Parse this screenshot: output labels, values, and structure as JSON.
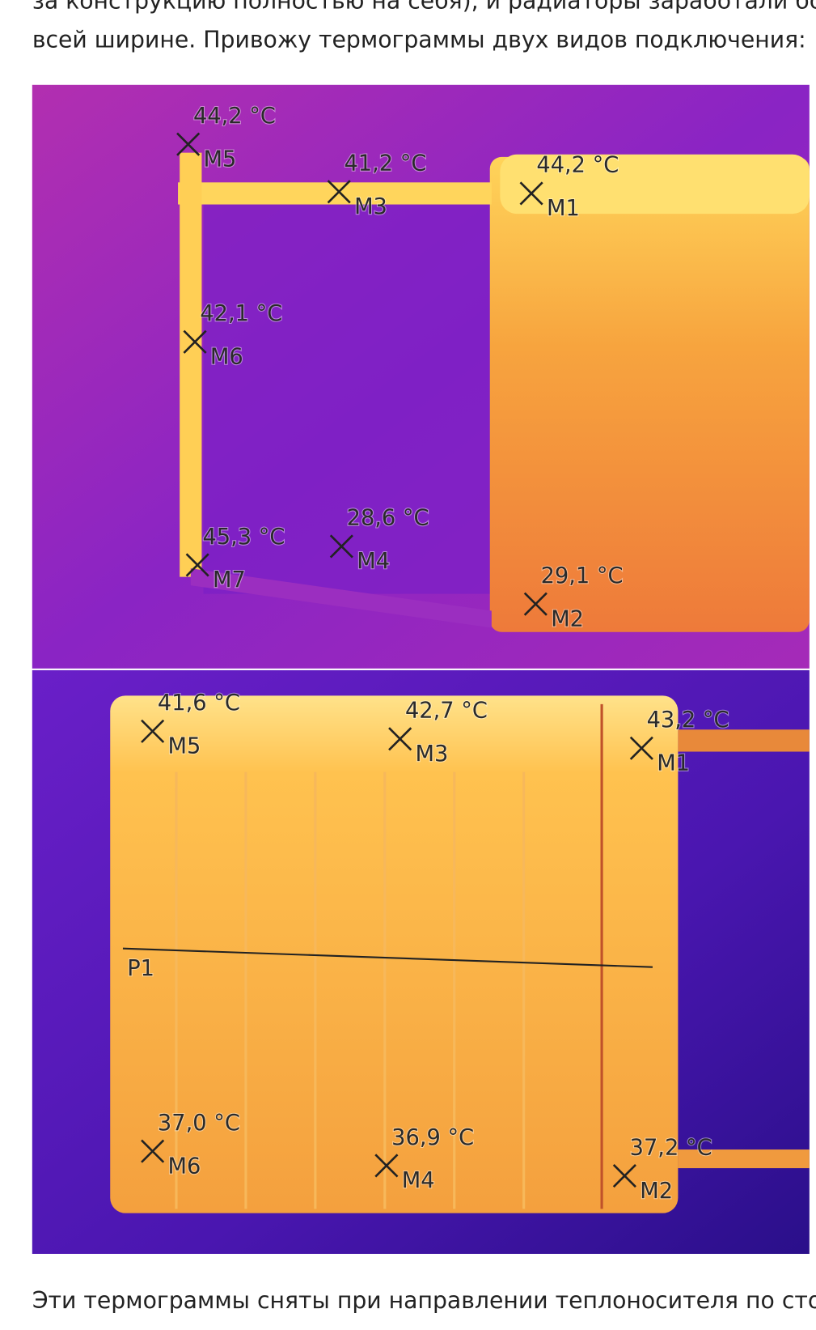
{
  "text_top": [
    "за конструкцию полностью на себя), и радиаторы заработали бо",
    "всей ширине. Привожу термограммы двух видов подключения:"
  ],
  "thermograms": [
    {
      "points": [
        {
          "temp": "44,2 °C",
          "label": "M5"
        },
        {
          "temp": "41,2 °C",
          "label": "M3"
        },
        {
          "temp": "44,2 °C",
          "label": "M1"
        },
        {
          "temp": "42,1 °C",
          "label": "M6"
        },
        {
          "temp": "45,3 °C",
          "label": "M7"
        },
        {
          "temp": "28,6 °C",
          "label": "M4"
        },
        {
          "temp": "29,1 °C",
          "label": "M2"
        }
      ]
    },
    {
      "points": [
        {
          "temp": "41,6 °C",
          "label": "M5"
        },
        {
          "temp": "42,7 °C",
          "label": "M3"
        },
        {
          "temp": "43,2 °C",
          "label": "M1"
        },
        {
          "temp": "37,0 °C",
          "label": "M6"
        },
        {
          "temp": "36,9 °C",
          "label": "M4"
        },
        {
          "temp": "37,2 °C",
          "label": "M2"
        }
      ],
      "line_label": "P1"
    }
  ],
  "text_bottom": "Эти термограммы сняты при направлении теплоносителя по сто"
}
